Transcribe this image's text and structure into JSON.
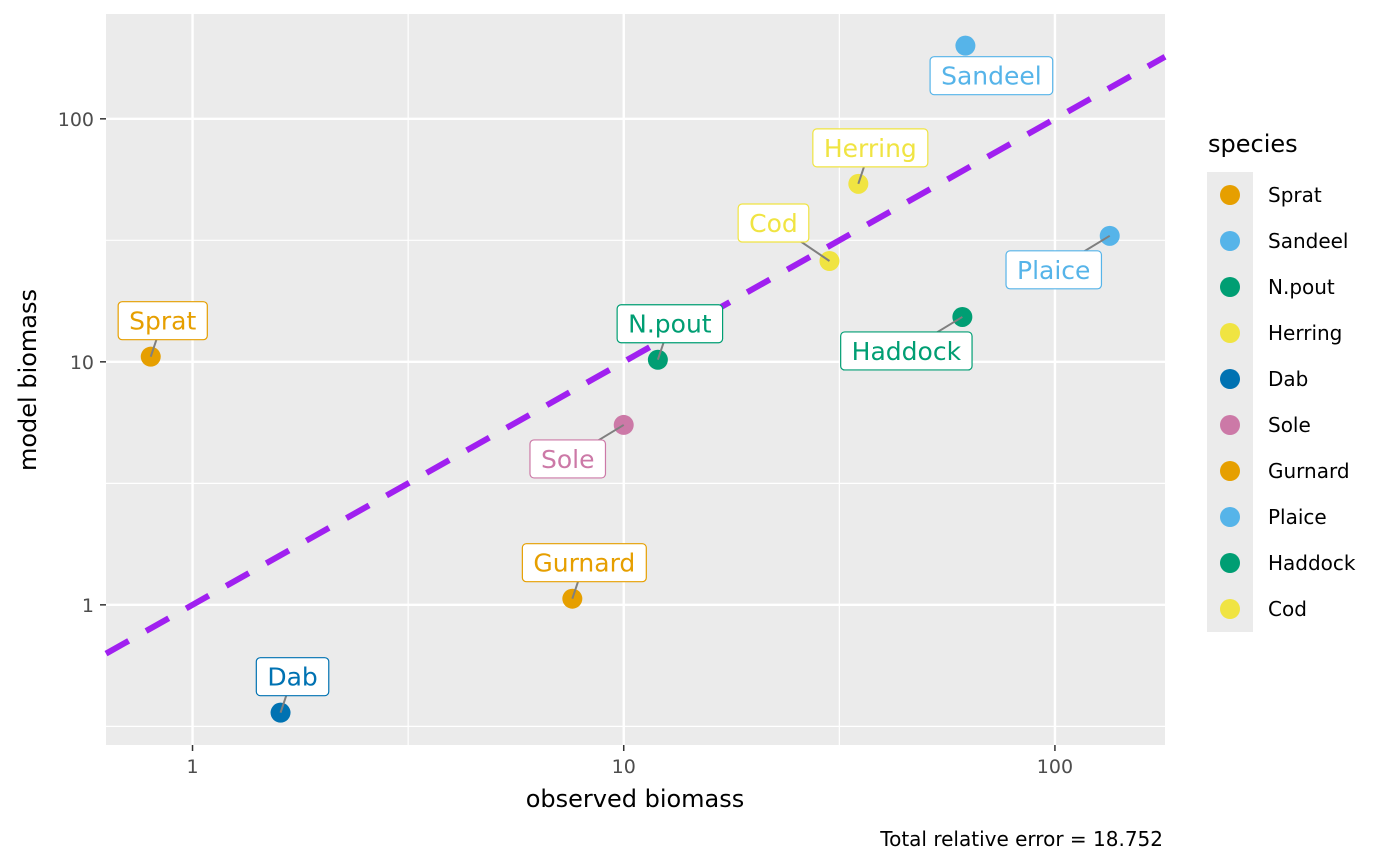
{
  "chart_data": {
    "type": "scatter",
    "xlabel": "observed biomass",
    "ylabel": "model biomass",
    "x_scale": "log10",
    "y_scale": "log10",
    "xlim": [
      0.63,
      180
    ],
    "ylim": [
      0.265,
      270
    ],
    "x_ticks": [
      {
        "value": 1,
        "label": "1"
      },
      {
        "value": 10,
        "label": "10"
      },
      {
        "value": 100,
        "label": "100"
      }
    ],
    "y_ticks": [
      {
        "value": 1,
        "label": "1"
      },
      {
        "value": 10,
        "label": "10"
      },
      {
        "value": 100,
        "label": "100"
      }
    ],
    "grid": true,
    "reference_line": {
      "type": "identity",
      "style": "dashed",
      "color": "#a020f0"
    },
    "legend": {
      "title": "species",
      "position": "right",
      "entries": [
        {
          "name": "Sprat",
          "color": "#e69f00"
        },
        {
          "name": "Sandeel",
          "color": "#56b4e9"
        },
        {
          "name": "N.pout",
          "color": "#009e73"
        },
        {
          "name": "Herring",
          "color": "#f0e442"
        },
        {
          "name": "Dab",
          "color": "#0072b2"
        },
        {
          "name": "Sole",
          "color": "#cc79a7"
        },
        {
          "name": "Gurnard",
          "color": "#e69f00"
        },
        {
          "name": "Plaice",
          "color": "#56b4e9"
        },
        {
          "name": "Haddock",
          "color": "#009e73"
        },
        {
          "name": "Cod",
          "color": "#f0e442"
        }
      ]
    },
    "points": [
      {
        "species": "Sprat",
        "observed": 0.8,
        "model": 10.5,
        "color": "#e69f00",
        "label_anchor": "above-right"
      },
      {
        "species": "Sandeel",
        "observed": 62,
        "model": 200,
        "color": "#56b4e9",
        "label_anchor": "below-right"
      },
      {
        "species": "N.pout",
        "observed": 12,
        "model": 10.2,
        "color": "#009e73",
        "label_anchor": "above-right"
      },
      {
        "species": "Herring",
        "observed": 35,
        "model": 54,
        "color": "#f0e442",
        "label_anchor": "above-right"
      },
      {
        "species": "Dab",
        "observed": 1.6,
        "model": 0.36,
        "color": "#0072b2",
        "label_anchor": "above-right"
      },
      {
        "species": "Sole",
        "observed": 10,
        "model": 5.5,
        "color": "#cc79a7",
        "label_anchor": "below-left"
      },
      {
        "species": "Gurnard",
        "observed": 7.6,
        "model": 1.06,
        "color": "#e69f00",
        "label_anchor": "above-right"
      },
      {
        "species": "Plaice",
        "observed": 134,
        "model": 33,
        "color": "#56b4e9",
        "label_anchor": "below-left"
      },
      {
        "species": "Haddock",
        "observed": 61,
        "model": 15.3,
        "color": "#009e73",
        "label_anchor": "below-left"
      },
      {
        "species": "Cod",
        "observed": 30,
        "model": 26,
        "color": "#f0e442",
        "label_anchor": "above-left"
      }
    ],
    "caption": "Total relative error = 18.752"
  }
}
